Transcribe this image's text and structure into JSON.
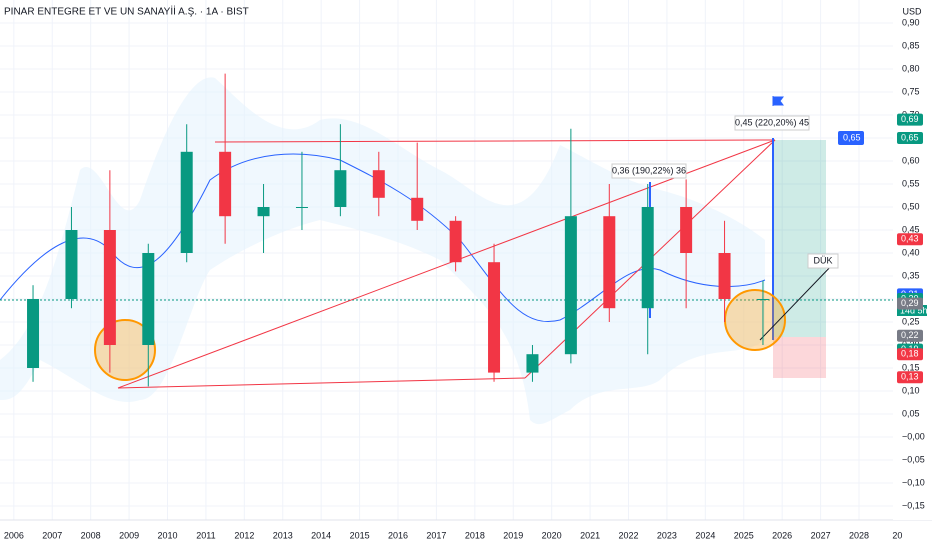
{
  "chart_data": {
    "type": "candlestick",
    "title": "PINAR ENTEGRE ET VE UN SANAYİİ A.Ş. · 1A · BIST",
    "currency": "USD",
    "up_color": "#089981",
    "down_color": "#f23645",
    "x": [
      2006,
      2007,
      2008,
      2009,
      2010,
      2011,
      2012,
      2013,
      2014,
      2015,
      2016,
      2017,
      2018,
      2019,
      2020,
      2021,
      2022,
      2023,
      2024,
      2025
    ],
    "open": [
      0.15,
      0.3,
      0.45,
      0.2,
      0.4,
      0.62,
      0.48,
      0.5,
      0.5,
      0.58,
      0.52,
      0.47,
      0.38,
      0.14,
      0.18,
      0.48,
      0.28,
      0.5,
      0.4,
      0.3
    ],
    "high": [
      0.33,
      0.5,
      0.58,
      0.42,
      0.68,
      0.79,
      0.55,
      0.62,
      0.68,
      0.62,
      0.64,
      0.48,
      0.42,
      0.2,
      0.67,
      0.55,
      0.55,
      0.56,
      0.47,
      0.34
    ],
    "low": [
      0.12,
      0.28,
      0.14,
      0.11,
      0.38,
      0.42,
      0.4,
      0.45,
      0.48,
      0.48,
      0.45,
      0.36,
      0.12,
      0.12,
      0.16,
      0.25,
      0.18,
      0.28,
      0.25,
      0.2
    ],
    "close": [
      0.3,
      0.45,
      0.2,
      0.4,
      0.62,
      0.48,
      0.5,
      0.5,
      0.58,
      0.52,
      0.47,
      0.38,
      0.14,
      0.18,
      0.48,
      0.28,
      0.5,
      0.4,
      0.3,
      0.3
    ],
    "xlim": [
      2005.64,
      2029.9
    ],
    "xticks": [
      2006,
      2007,
      2008,
      2009,
      2010,
      2011,
      2012,
      2013,
      2014,
      2015,
      2016,
      2017,
      2018,
      2019,
      2020,
      2021,
      2022,
      2023,
      2024,
      2025,
      2026,
      2027,
      2028,
      {
        "value": 2029,
        "label": "20"
      }
    ],
    "ylim": [
      0.9,
      -0.15
    ],
    "yticks": [
      {
        "value": 0.9,
        "label": "0,90"
      },
      {
        "value": 0.85,
        "label": "0,85"
      },
      {
        "value": 0.8,
        "label": "0,80"
      },
      {
        "value": 0.75,
        "label": "0,75"
      },
      {
        "value": 0.7,
        "label": "0,70"
      },
      {
        "value": 0.65,
        "label": "0,65"
      },
      {
        "value": 0.6,
        "label": "0,60"
      },
      {
        "value": 0.55,
        "label": "0,55"
      },
      {
        "value": 0.5,
        "label": "0,50"
      },
      {
        "value": 0.45,
        "label": "0,45"
      },
      {
        "value": 0.4,
        "label": "0,40"
      },
      {
        "value": 0.35,
        "label": "0,35"
      },
      {
        "value": 0.3,
        "label": "0,30"
      },
      {
        "value": 0.25,
        "label": "0,25"
      },
      {
        "value": 0.2,
        "label": "0,20"
      },
      {
        "value": 0.15,
        "label": "0,15"
      },
      {
        "value": 0.1,
        "label": "0,10"
      },
      {
        "value": 0.05,
        "label": "0,05"
      },
      {
        "value": 0,
        "label": "−0,00"
      },
      {
        "value": -0.05,
        "label": "−0,05"
      },
      {
        "value": -0.1,
        "label": "−0,10"
      },
      {
        "value": -0.15,
        "label": "−0,15"
      }
    ],
    "price_labels": [
      {
        "value": 0.69,
        "label": "0,69",
        "color": "#089981"
      },
      {
        "value": 0.65,
        "label": "0,65",
        "color": "#089981"
      },
      {
        "value": 0.43,
        "label": "0,43",
        "color": "#f23645"
      },
      {
        "value": 0.31,
        "label": "0,31",
        "color": "#2962ff"
      },
      {
        "value": 0.3,
        "label": "0,30",
        "color": "#089981"
      },
      {
        "value": 0.29,
        "label": "0,29",
        "color": "#787b86"
      },
      {
        "value": 0.22,
        "label": "0,22",
        "color": "#787b86"
      },
      {
        "value": 0.19,
        "label": "0,19",
        "color": "#089981"
      },
      {
        "value": 0.18,
        "label": "0,18",
        "color": "#f23645"
      },
      {
        "value": 0.13,
        "label": "0,13",
        "color": "#f23645"
      }
    ],
    "countdown": "14d 5h",
    "target_label": {
      "value": 0.65,
      "label": "0,65"
    },
    "annotations": [
      "0,36 (190,22%) 36",
      "0,45 (220,20%) 45",
      "DÜK"
    ]
  }
}
